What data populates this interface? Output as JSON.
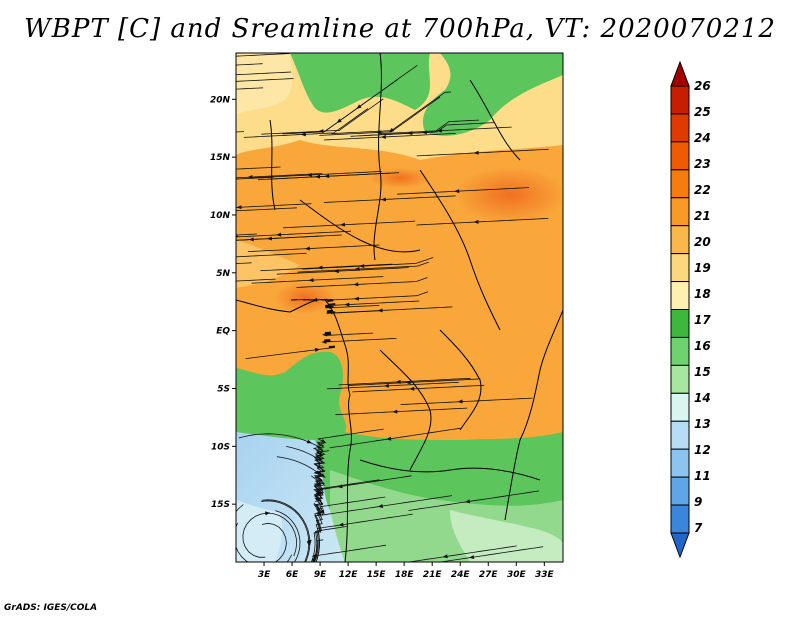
{
  "title": "WBPT [C] and Sreamline at 700hPa, VT: 2020070212",
  "credit": "GrADS: IGES/COLA",
  "map": {
    "lon_range": [
      0,
      35
    ],
    "lat_range": [
      -20,
      24
    ],
    "lat_ticks": [
      {
        "value": 20,
        "label": "20N"
      },
      {
        "value": 15,
        "label": "15N"
      },
      {
        "value": 10,
        "label": "10N"
      },
      {
        "value": 5,
        "label": "5N"
      },
      {
        "value": 0,
        "label": "EQ"
      },
      {
        "value": -5,
        "label": "5S"
      },
      {
        "value": -10,
        "label": "10S"
      },
      {
        "value": -15,
        "label": "15S"
      }
    ],
    "lon_ticks": [
      {
        "value": 3,
        "label": "3E"
      },
      {
        "value": 6,
        "label": "6E"
      },
      {
        "value": 9,
        "label": "9E"
      },
      {
        "value": 12,
        "label": "12E"
      },
      {
        "value": 15,
        "label": "15E"
      },
      {
        "value": 18,
        "label": "18E"
      },
      {
        "value": 21,
        "label": "21E"
      },
      {
        "value": 24,
        "label": "24E"
      },
      {
        "value": 27,
        "label": "27E"
      },
      {
        "value": 30,
        "label": "30E"
      },
      {
        "value": 33,
        "label": "33E"
      }
    ]
  },
  "colorbar": {
    "levels": [
      "26",
      "25",
      "24",
      "23",
      "22",
      "21",
      "20",
      "19",
      "18",
      "17",
      "16",
      "15",
      "14",
      "13",
      "12",
      "11",
      "9",
      "7"
    ],
    "colors": [
      "#a50000",
      "#c81e00",
      "#e03a00",
      "#f05a00",
      "#f77c0d",
      "#fa9a26",
      "#fbb84a",
      "#fdd77e",
      "#fff0b0",
      "#3db83d",
      "#6ed36e",
      "#a6e6a0",
      "#d8f5f0",
      "#b7ddf6",
      "#8cc4ef",
      "#5ea6e8",
      "#3b86dd",
      "#2266cc"
    ]
  }
}
